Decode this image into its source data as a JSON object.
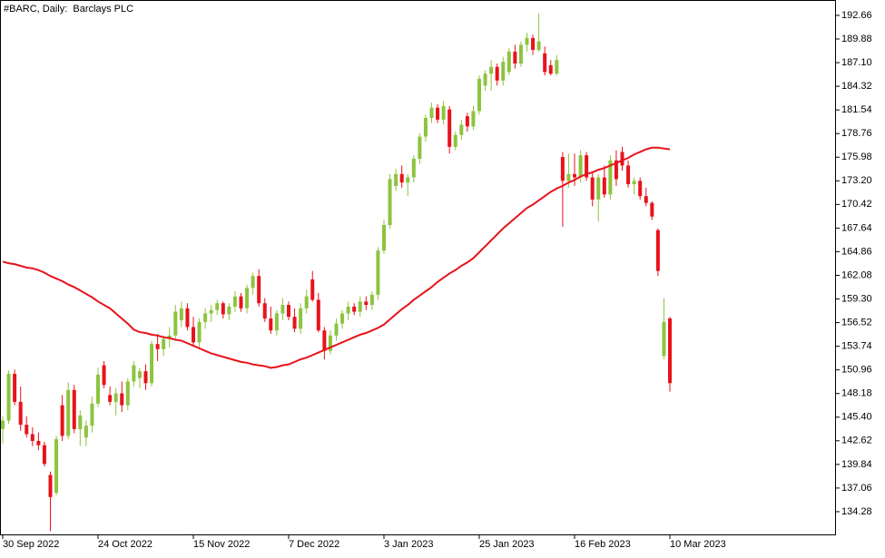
{
  "chart_data": {
    "type": "candlestick",
    "title": "#BARC, Daily:  Barclays PLC",
    "categories": [
      "30 Sep 2022",
      null,
      null,
      null,
      null,
      null,
      null,
      null,
      null,
      null,
      null,
      null,
      null,
      null,
      null,
      null,
      "24 Oct 2022",
      null,
      null,
      null,
      null,
      null,
      null,
      null,
      null,
      null,
      null,
      null,
      null,
      null,
      null,
      null,
      "15 Nov 2022",
      null,
      null,
      null,
      null,
      null,
      null,
      null,
      null,
      null,
      null,
      null,
      null,
      null,
      null,
      null,
      "7 Dec 2022",
      null,
      null,
      null,
      null,
      null,
      null,
      null,
      null,
      null,
      null,
      null,
      null,
      null,
      null,
      null,
      "3 Jan 2023",
      null,
      null,
      null,
      null,
      null,
      null,
      null,
      null,
      null,
      null,
      null,
      null,
      null,
      null,
      null,
      "25 Jan 2023",
      null,
      null,
      null,
      null,
      null,
      null,
      null,
      null,
      null,
      null,
      null,
      null,
      null,
      null,
      null,
      "16 Feb 2023",
      null,
      null,
      null,
      null,
      null,
      null,
      null,
      null,
      null,
      null,
      null,
      null,
      null,
      null,
      null,
      "10 Mar 2023"
    ],
    "open": [
      144.0,
      145.0,
      150.5,
      147.2,
      144.5,
      143.4,
      142.6,
      142.1,
      138.6,
      136.5,
      146.8,
      143.2,
      148.6,
      144.0,
      143.0,
      144.4,
      147.0,
      151.5,
      148.0,
      147.2,
      148.2,
      146.8,
      149.6,
      150.0,
      150.8,
      149.4,
      154.0,
      153.4,
      154.6,
      155.0,
      156.8,
      158.2,
      156.0,
      154.2,
      156.6,
      157.6,
      158.0,
      158.8,
      157.5,
      158.4,
      159.6,
      158.2,
      160.6,
      162.0,
      158.8,
      157.0,
      155.6,
      157.6,
      158.6,
      157.2,
      155.8,
      158.2,
      161.6,
      159.2,
      155.6,
      153.2,
      155.0,
      156.4,
      157.6,
      158.4,
      157.8,
      159.0,
      158.6,
      159.8,
      165.0,
      168.0,
      172.6,
      174.0,
      173.0,
      173.6,
      175.8,
      178.4,
      180.6,
      181.8,
      180.4,
      181.6,
      177.2,
      178.6,
      180.8,
      179.6,
      181.4,
      184.4,
      185.8,
      186.6,
      185.0,
      186.0,
      188.4,
      187.0,
      189.2,
      190.0,
      188.6,
      188.2,
      186.8,
      185.8,
      176.0,
      173.2,
      174.0,
      173.6,
      176.2,
      173.6,
      171.0,
      173.6,
      171.6,
      175.6,
      176.6,
      175.0,
      172.8,
      173.2,
      171.4,
      170.6,
      167.4,
      152.6,
      157.0
    ],
    "high": [
      145.5,
      150.9,
      151.0,
      149.0,
      145.5,
      144.2,
      143.6,
      142.5,
      139.0,
      143.2,
      148.0,
      149.5,
      149.2,
      146.2,
      145.0,
      147.8,
      151.2,
      152.0,
      149.0,
      148.8,
      149.6,
      150.0,
      152.0,
      151.2,
      151.6,
      154.4,
      155.2,
      155.0,
      156.0,
      158.6,
      159.0,
      158.8,
      157.2,
      157.0,
      158.2,
      158.6,
      159.2,
      159.0,
      158.8,
      160.2,
      160.0,
      161.0,
      162.4,
      162.8,
      159.4,
      158.4,
      158.0,
      159.4,
      159.0,
      158.2,
      158.8,
      160.4,
      162.6,
      160.0,
      156.0,
      155.6,
      157.0,
      158.0,
      159.0,
      158.8,
      159.6,
      159.6,
      160.2,
      165.4,
      168.6,
      174.0,
      174.6,
      175.0,
      174.0,
      176.2,
      178.8,
      181.0,
      182.4,
      182.2,
      182.6,
      182.0,
      179.0,
      180.4,
      181.2,
      182.0,
      185.6,
      186.2,
      187.4,
      187.0,
      187.8,
      188.8,
      189.2,
      189.6,
      190.6,
      190.4,
      192.9,
      189.0,
      187.4,
      188.0,
      176.6,
      176.4,
      176.4,
      176.8,
      176.6,
      174.2,
      174.0,
      175.0,
      176.2,
      176.8,
      177.2,
      175.6,
      173.6,
      173.6,
      172.4,
      170.8,
      167.6,
      159.4,
      157.2
    ],
    "low": [
      142.3,
      144.6,
      146.8,
      143.8,
      143.0,
      142.0,
      141.5,
      139.6,
      132.0,
      136.2,
      142.6,
      142.8,
      143.5,
      142.0,
      142.0,
      143.6,
      146.6,
      148.8,
      146.8,
      145.6,
      146.0,
      146.2,
      149.0,
      148.8,
      148.6,
      149.0,
      152.0,
      152.6,
      153.6,
      154.6,
      156.0,
      155.6,
      153.8,
      153.6,
      155.8,
      156.6,
      157.4,
      157.0,
      156.8,
      157.8,
      157.8,
      157.6,
      159.8,
      158.4,
      156.6,
      155.2,
      155.0,
      156.8,
      156.8,
      155.4,
      155.2,
      157.6,
      159.0,
      155.4,
      152.2,
      152.8,
      154.4,
      155.8,
      156.8,
      157.4,
      157.2,
      158.0,
      158.0,
      159.2,
      164.6,
      167.6,
      172.0,
      172.4,
      171.4,
      173.0,
      175.2,
      177.8,
      180.0,
      180.0,
      179.8,
      176.4,
      176.8,
      178.0,
      179.0,
      179.2,
      181.0,
      183.8,
      183.8,
      184.4,
      184.4,
      185.6,
      186.4,
      186.6,
      188.4,
      188.0,
      188.4,
      185.6,
      185.6,
      185.6,
      167.8,
      172.4,
      172.6,
      173.0,
      173.2,
      170.2,
      168.4,
      171.2,
      171.0,
      172.6,
      174.4,
      172.4,
      171.6,
      171.0,
      170.2,
      168.6,
      162.0,
      152.2,
      148.4
    ],
    "close": [
      145.0,
      150.5,
      147.2,
      144.5,
      143.4,
      142.6,
      142.1,
      139.9,
      136.0,
      142.8,
      143.2,
      148.6,
      144.0,
      145.6,
      144.4,
      147.0,
      150.4,
      149.2,
      147.2,
      148.2,
      146.8,
      149.6,
      151.5,
      150.8,
      149.4,
      154.0,
      153.4,
      154.6,
      155.0,
      157.8,
      158.2,
      156.0,
      154.2,
      156.6,
      157.6,
      158.0,
      158.8,
      157.5,
      158.4,
      159.6,
      158.2,
      160.6,
      162.0,
      158.8,
      157.0,
      155.6,
      157.6,
      158.6,
      157.2,
      155.8,
      158.2,
      159.6,
      159.2,
      155.6,
      153.2,
      155.0,
      156.4,
      157.6,
      158.4,
      157.8,
      159.0,
      158.6,
      159.8,
      165.0,
      168.0,
      173.4,
      174.0,
      173.0,
      173.6,
      175.8,
      178.4,
      180.6,
      181.8,
      180.4,
      182.0,
      177.2,
      178.6,
      179.8,
      179.6,
      181.4,
      185.2,
      185.8,
      186.6,
      185.0,
      187.2,
      188.4,
      187.0,
      189.2,
      190.0,
      188.6,
      189.6,
      186.0,
      185.8,
      187.4,
      173.2,
      174.0,
      173.6,
      176.2,
      173.6,
      171.0,
      173.6,
      171.6,
      175.6,
      173.4,
      175.0,
      172.8,
      173.2,
      171.4,
      170.6,
      169.0,
      162.6,
      156.6,
      149.4
    ],
    "up_color": "#8cc43f",
    "down_color": "#e8121b",
    "moving_average": {
      "color": "#e8121b",
      "values": [
        163.7,
        163.5,
        163.4,
        163.2,
        163.0,
        162.9,
        162.7,
        162.4,
        162.0,
        161.7,
        161.4,
        161.0,
        160.7,
        160.3,
        159.9,
        159.5,
        159.0,
        158.6,
        158.2,
        157.6,
        157.0,
        156.4,
        155.7,
        155.4,
        155.3,
        155.1,
        155.0,
        154.8,
        154.7,
        154.5,
        154.4,
        154.1,
        153.8,
        153.5,
        153.2,
        152.9,
        152.7,
        152.5,
        152.3,
        152.1,
        151.9,
        151.8,
        151.6,
        151.5,
        151.4,
        151.2,
        151.3,
        151.5,
        151.6,
        151.9,
        152.2,
        152.4,
        152.7,
        153.0,
        153.3,
        153.6,
        153.9,
        154.2,
        154.5,
        154.8,
        155.1,
        155.3,
        155.6,
        155.9,
        156.3,
        156.9,
        157.5,
        158.1,
        158.6,
        159.2,
        159.7,
        160.2,
        160.7,
        161.3,
        161.8,
        162.3,
        162.7,
        163.2,
        163.6,
        164.1,
        164.8,
        165.5,
        166.2,
        166.9,
        167.6,
        168.2,
        168.8,
        169.4,
        170.0,
        170.4,
        170.9,
        171.4,
        171.9,
        172.3,
        172.6,
        173.0,
        173.3,
        173.7,
        174.0,
        174.2,
        174.5,
        174.7,
        175.0,
        175.3,
        175.6,
        175.9,
        176.3,
        176.6,
        176.9,
        177.1,
        177.1,
        177.0,
        176.9
      ]
    },
    "ylim": [
      131.5,
      194.47
    ],
    "yticks": [
      192.66,
      189.88,
      {
        "value": 187.1,
        "label": "187.10"
      },
      184.32,
      181.54,
      178.76,
      175.98,
      {
        "value": 173.2,
        "label": "173.20"
      },
      170.42,
      167.64,
      164.86,
      162.08,
      {
        "value": 159.3,
        "label": "159.30"
      },
      156.52,
      153.74,
      150.96,
      148.18,
      {
        "value": 145.4,
        "label": "145.40"
      },
      142.62,
      139.84,
      137.06,
      134.28
    ]
  }
}
